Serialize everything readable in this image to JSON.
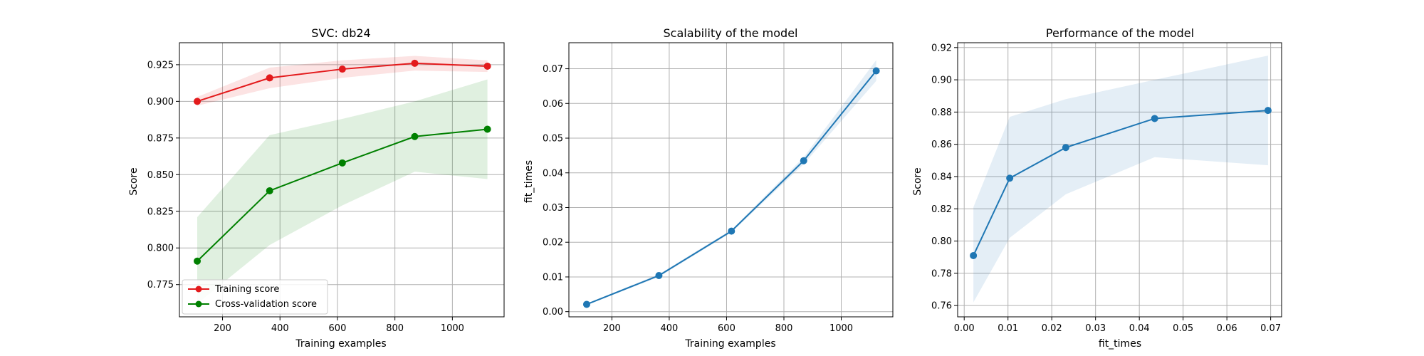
{
  "chart_data": [
    {
      "type": "line",
      "title": "SVC: db24",
      "xlabel": "Training examples",
      "ylabel": "Score",
      "x": [
        112,
        364,
        617,
        869,
        1122
      ],
      "xlim": [
        50,
        1180
      ],
      "ylim": [
        0.753,
        0.94
      ],
      "xticks": [
        200,
        400,
        600,
        800,
        1000
      ],
      "xtick_labels": [
        "200",
        "400",
        "600",
        "800",
        "1000"
      ],
      "yticks": [
        0.775,
        0.8,
        0.825,
        0.85,
        0.875,
        0.9,
        0.925
      ],
      "ytick_labels": [
        "0.775",
        "0.800",
        "0.825",
        "0.850",
        "0.875",
        "0.900",
        "0.925"
      ],
      "grid": true,
      "legend_position": "lower-left",
      "series": [
        {
          "name": "Training score",
          "color": "#e31a1c",
          "values": [
            0.9,
            0.916,
            0.922,
            0.926,
            0.924
          ],
          "band_lower": [
            0.897,
            0.909,
            0.916,
            0.921,
            0.92
          ],
          "band_upper": [
            0.903,
            0.923,
            0.928,
            0.931,
            0.928
          ]
        },
        {
          "name": "Cross-validation score",
          "color": "#008000",
          "values": [
            0.791,
            0.839,
            0.858,
            0.876,
            0.881
          ],
          "band_lower": [
            0.762,
            0.802,
            0.829,
            0.852,
            0.847
          ],
          "band_upper": [
            0.821,
            0.877,
            0.888,
            0.9,
            0.915
          ]
        }
      ]
    },
    {
      "type": "line",
      "title": "Scalability of the model",
      "xlabel": "Training examples",
      "ylabel": "fit_times",
      "x": [
        112,
        364,
        617,
        869,
        1122
      ],
      "xlim": [
        50,
        1180
      ],
      "ylim": [
        -0.0015,
        0.0775
      ],
      "xticks": [
        200,
        400,
        600,
        800,
        1000
      ],
      "xtick_labels": [
        "200",
        "400",
        "600",
        "800",
        "1000"
      ],
      "yticks": [
        0.0,
        0.01,
        0.02,
        0.03,
        0.04,
        0.05,
        0.06,
        0.07
      ],
      "ytick_labels": [
        "0.00",
        "0.01",
        "0.02",
        "0.03",
        "0.04",
        "0.05",
        "0.06",
        "0.07"
      ],
      "grid": true,
      "series": [
        {
          "color": "#1f77b4",
          "values": [
            0.0021,
            0.0104,
            0.0232,
            0.0435,
            0.0694
          ],
          "band_lower": [
            0.0019,
            0.01,
            0.0228,
            0.0425,
            0.0665
          ],
          "band_upper": [
            0.0023,
            0.0108,
            0.0236,
            0.0445,
            0.0725
          ]
        }
      ]
    },
    {
      "type": "line",
      "title": "Performance of the model",
      "xlabel": "fit_times",
      "ylabel": "Score",
      "x": [
        0.0021,
        0.0104,
        0.0232,
        0.0435,
        0.0694
      ],
      "xlim": [
        -0.0015,
        0.0725
      ],
      "ylim": [
        0.753,
        0.923
      ],
      "xticks": [
        0.0,
        0.01,
        0.02,
        0.03,
        0.04,
        0.05,
        0.06,
        0.07
      ],
      "xtick_labels": [
        "0.00",
        "0.01",
        "0.02",
        "0.03",
        "0.04",
        "0.05",
        "0.06",
        "0.07"
      ],
      "yticks": [
        0.76,
        0.78,
        0.8,
        0.82,
        0.84,
        0.86,
        0.88,
        0.9,
        0.92
      ],
      "ytick_labels": [
        "0.76",
        "0.78",
        "0.80",
        "0.82",
        "0.84",
        "0.86",
        "0.88",
        "0.90",
        "0.92"
      ],
      "grid": true,
      "series": [
        {
          "color": "#1f77b4",
          "values": [
            0.791,
            0.839,
            0.858,
            0.876,
            0.881
          ],
          "band_lower": [
            0.762,
            0.802,
            0.829,
            0.852,
            0.847
          ],
          "band_upper": [
            0.821,
            0.877,
            0.888,
            0.9,
            0.915
          ]
        }
      ]
    }
  ]
}
